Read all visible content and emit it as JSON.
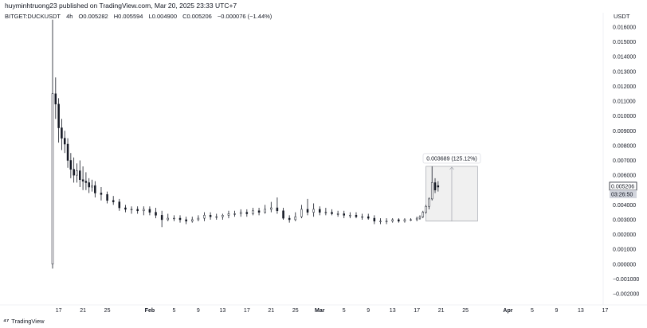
{
  "header": {
    "publish_line": "huyminhtruong23 published on TradingView.com, Mar 20, 2025 23:33 UTC+7"
  },
  "legend": {
    "symbol": "BITGET:DUCKUSDT",
    "interval": "4h",
    "open": "O0.005282",
    "high": "H0.005594",
    "low": "L0.004900",
    "close": "C0.005206",
    "change": "−0.000076 (−1.44%)"
  },
  "axis": {
    "currency": "USDT"
  },
  "footer": {
    "brand": "TradingView"
  },
  "colors": {
    "candle": "#131722",
    "grid": "#ffffff",
    "measure_fill": "#f0f0f0",
    "measure_border": "#9598a1",
    "price_tag_bg": "#ffffff",
    "price_tag_border": "#131722",
    "countdown_bg": "#d1d4dc"
  },
  "chart_data": {
    "type": "candlestick",
    "y_axis": {
      "min": -0.0023,
      "max": 0.0169,
      "ticks": [
        "0.016000",
        "0.015000",
        "0.014000",
        "0.013000",
        "0.012000",
        "0.011000",
        "0.010000",
        "0.009000",
        "0.008000",
        "0.007000",
        "0.006000",
        "0.005000",
        "0.004000",
        "0.003000",
        "0.002000",
        "0.001000",
        "0.000000",
        "−0.001000",
        "−0.002000"
      ],
      "tick_values": [
        0.016,
        0.015,
        0.014,
        0.013,
        0.012,
        0.011,
        0.01,
        0.009,
        0.008,
        0.007,
        0.006,
        0.005,
        0.004,
        0.003,
        0.002,
        0.001,
        0.0,
        -0.001,
        -0.002
      ]
    },
    "x_axis": {
      "start": "2025-01-16",
      "end": "2025-04-18",
      "ticks": [
        {
          "label": "17",
          "date": "2025-01-17",
          "bold": false
        },
        {
          "label": "21",
          "date": "2025-01-21",
          "bold": false
        },
        {
          "label": "25",
          "date": "2025-01-25",
          "bold": false
        },
        {
          "label": "Feb",
          "date": "2025-02-01",
          "bold": true
        },
        {
          "label": "5",
          "date": "2025-02-05",
          "bold": false
        },
        {
          "label": "9",
          "date": "2025-02-09",
          "bold": false
        },
        {
          "label": "13",
          "date": "2025-02-13",
          "bold": false
        },
        {
          "label": "17",
          "date": "2025-02-17",
          "bold": false
        },
        {
          "label": "21",
          "date": "2025-02-21",
          "bold": false
        },
        {
          "label": "25",
          "date": "2025-02-25",
          "bold": false
        },
        {
          "label": "Mar",
          "date": "2025-03-01",
          "bold": true
        },
        {
          "label": "5",
          "date": "2025-03-05",
          "bold": false
        },
        {
          "label": "9",
          "date": "2025-03-09",
          "bold": false
        },
        {
          "label": "13",
          "date": "2025-03-13",
          "bold": false
        },
        {
          "label": "17",
          "date": "2025-03-17",
          "bold": false
        },
        {
          "label": "21",
          "date": "2025-03-21",
          "bold": false
        },
        {
          "label": "25",
          "date": "2025-03-25",
          "bold": false
        },
        {
          "label": "Apr",
          "date": "2025-04-01",
          "bold": true
        },
        {
          "label": "5",
          "date": "2025-04-05",
          "bold": false
        },
        {
          "label": "9",
          "date": "2025-04-09",
          "bold": false
        },
        {
          "label": "13",
          "date": "2025-04-13",
          "bold": false
        },
        {
          "label": "17",
          "date": "2025-04-17",
          "bold": false
        }
      ]
    },
    "series": [
      {
        "date": "2025-01-16",
        "high": 0.0165,
        "low": -0.0003,
        "open": 0.0,
        "close": 0.0115
      },
      {
        "date": "2025-01-16.5",
        "high": 0.0126,
        "low": 0.0098,
        "open": 0.0115,
        "close": 0.0108
      },
      {
        "date": "2025-01-17",
        "high": 0.0112,
        "low": 0.0082,
        "open": 0.0108,
        "close": 0.0092
      },
      {
        "date": "2025-01-17.5",
        "high": 0.0098,
        "low": 0.0077,
        "open": 0.0092,
        "close": 0.0085
      },
      {
        "date": "2025-01-18",
        "high": 0.009,
        "low": 0.0075,
        "open": 0.0085,
        "close": 0.0081
      },
      {
        "date": "2025-01-18.5",
        "high": 0.0085,
        "low": 0.0065,
        "open": 0.0081,
        "close": 0.007
      },
      {
        "date": "2025-01-19",
        "high": 0.0075,
        "low": 0.0058,
        "open": 0.007,
        "close": 0.0064
      },
      {
        "date": "2025-01-19.5",
        "high": 0.0072,
        "low": 0.0055,
        "open": 0.0064,
        "close": 0.006
      },
      {
        "date": "2025-01-20",
        "high": 0.0068,
        "low": 0.0055,
        "open": 0.006,
        "close": 0.0063
      },
      {
        "date": "2025-01-20.5",
        "high": 0.007,
        "low": 0.0052,
        "open": 0.0063,
        "close": 0.0057
      },
      {
        "date": "2025-01-21",
        "high": 0.0066,
        "low": 0.005,
        "open": 0.0057,
        "close": 0.0056
      },
      {
        "date": "2025-01-21.5",
        "high": 0.0062,
        "low": 0.005,
        "open": 0.0056,
        "close": 0.0055
      },
      {
        "date": "2025-01-22",
        "high": 0.0058,
        "low": 0.0048,
        "open": 0.0055,
        "close": 0.0052
      },
      {
        "date": "2025-01-22.5",
        "high": 0.0057,
        "low": 0.0049,
        "open": 0.0052,
        "close": 0.0053
      },
      {
        "date": "2025-01-23",
        "high": 0.0056,
        "low": 0.0045,
        "open": 0.0053,
        "close": 0.0048
      },
      {
        "date": "2025-01-24",
        "high": 0.0052,
        "low": 0.0043,
        "open": 0.0048,
        "close": 0.0047
      },
      {
        "date": "2025-01-25",
        "high": 0.0049,
        "low": 0.0041,
        "open": 0.0047,
        "close": 0.0043
      },
      {
        "date": "2025-01-26",
        "high": 0.0046,
        "low": 0.004,
        "open": 0.0043,
        "close": 0.0042
      },
      {
        "date": "2025-01-27",
        "high": 0.0044,
        "low": 0.0036,
        "open": 0.0042,
        "close": 0.0038
      },
      {
        "date": "2025-01-28",
        "high": 0.004,
        "low": 0.0035,
        "open": 0.0038,
        "close": 0.0037
      },
      {
        "date": "2025-01-29",
        "high": 0.0039,
        "low": 0.0034,
        "open": 0.0037,
        "close": 0.0037
      },
      {
        "date": "2025-01-30",
        "high": 0.0039,
        "low": 0.0034,
        "open": 0.0037,
        "close": 0.0036
      },
      {
        "date": "2025-01-31",
        "high": 0.0039,
        "low": 0.0033,
        "open": 0.0036,
        "close": 0.0037
      },
      {
        "date": "2025-02-01",
        "high": 0.0039,
        "low": 0.0033,
        "open": 0.0037,
        "close": 0.0035
      },
      {
        "date": "2025-02-02",
        "high": 0.0038,
        "low": 0.0031,
        "open": 0.0035,
        "close": 0.0033
      },
      {
        "date": "2025-02-03",
        "high": 0.0036,
        "low": 0.0025,
        "open": 0.0033,
        "close": 0.003
      },
      {
        "date": "2025-02-04",
        "high": 0.0034,
        "low": 0.0029,
        "open": 0.003,
        "close": 0.0031
      },
      {
        "date": "2025-02-05",
        "high": 0.0033,
        "low": 0.0029,
        "open": 0.0031,
        "close": 0.0031
      },
      {
        "date": "2025-02-06",
        "high": 0.0033,
        "low": 0.0028,
        "open": 0.0031,
        "close": 0.003
      },
      {
        "date": "2025-02-07",
        "high": 0.0032,
        "low": 0.0027,
        "open": 0.003,
        "close": 0.0029
      },
      {
        "date": "2025-02-08",
        "high": 0.0032,
        "low": 0.0028,
        "open": 0.0029,
        "close": 0.003
      },
      {
        "date": "2025-02-09",
        "high": 0.0033,
        "low": 0.0029,
        "open": 0.003,
        "close": 0.0031
      },
      {
        "date": "2025-02-10",
        "high": 0.0035,
        "low": 0.0029,
        "open": 0.0031,
        "close": 0.0033
      },
      {
        "date": "2025-02-11",
        "high": 0.0035,
        "low": 0.003,
        "open": 0.0033,
        "close": 0.0032
      },
      {
        "date": "2025-02-12",
        "high": 0.0034,
        "low": 0.003,
        "open": 0.0032,
        "close": 0.0032
      },
      {
        "date": "2025-02-13",
        "high": 0.0034,
        "low": 0.003,
        "open": 0.0032,
        "close": 0.0033
      },
      {
        "date": "2025-02-14",
        "high": 0.0036,
        "low": 0.0031,
        "open": 0.0033,
        "close": 0.0034
      },
      {
        "date": "2025-02-15",
        "high": 0.0036,
        "low": 0.0032,
        "open": 0.0034,
        "close": 0.0034
      },
      {
        "date": "2025-02-16",
        "high": 0.0037,
        "low": 0.0032,
        "open": 0.0034,
        "close": 0.0035
      },
      {
        "date": "2025-02-17",
        "high": 0.0037,
        "low": 0.0032,
        "open": 0.0035,
        "close": 0.0034
      },
      {
        "date": "2025-02-18",
        "high": 0.0038,
        "low": 0.0033,
        "open": 0.0034,
        "close": 0.0036
      },
      {
        "date": "2025-02-19",
        "high": 0.0038,
        "low": 0.0033,
        "open": 0.0036,
        "close": 0.0035
      },
      {
        "date": "2025-02-20",
        "high": 0.004,
        "low": 0.0034,
        "open": 0.0035,
        "close": 0.0037
      },
      {
        "date": "2025-02-21",
        "high": 0.0042,
        "low": 0.0035,
        "open": 0.0037,
        "close": 0.0038
      },
      {
        "date": "2025-02-22",
        "high": 0.0045,
        "low": 0.0034,
        "open": 0.0038,
        "close": 0.0036
      },
      {
        "date": "2025-02-23",
        "high": 0.0038,
        "low": 0.003,
        "open": 0.0036,
        "close": 0.0031
      },
      {
        "date": "2025-02-24",
        "high": 0.0033,
        "low": 0.0028,
        "open": 0.0031,
        "close": 0.003
      },
      {
        "date": "2025-02-25",
        "high": 0.0035,
        "low": 0.0029,
        "open": 0.003,
        "close": 0.0032
      },
      {
        "date": "2025-02-26",
        "high": 0.004,
        "low": 0.0031,
        "open": 0.0032,
        "close": 0.0037
      },
      {
        "date": "2025-02-27",
        "high": 0.0044,
        "low": 0.0033,
        "open": 0.0037,
        "close": 0.0035
      },
      {
        "date": "2025-02-28",
        "high": 0.0041,
        "low": 0.0032,
        "open": 0.0035,
        "close": 0.0037
      },
      {
        "date": "2025-03-01",
        "high": 0.0039,
        "low": 0.0033,
        "open": 0.0037,
        "close": 0.0035
      },
      {
        "date": "2025-03-02",
        "high": 0.0038,
        "low": 0.0033,
        "open": 0.0035,
        "close": 0.0035
      },
      {
        "date": "2025-03-03",
        "high": 0.0037,
        "low": 0.0033,
        "open": 0.0035,
        "close": 0.0034
      },
      {
        "date": "2025-03-04",
        "high": 0.0036,
        "low": 0.0032,
        "open": 0.0034,
        "close": 0.0034
      },
      {
        "date": "2025-03-05",
        "high": 0.0036,
        "low": 0.0031,
        "open": 0.0034,
        "close": 0.0033
      },
      {
        "date": "2025-03-06",
        "high": 0.0035,
        "low": 0.0031,
        "open": 0.0033,
        "close": 0.0033
      },
      {
        "date": "2025-03-07",
        "high": 0.0035,
        "low": 0.0031,
        "open": 0.0033,
        "close": 0.0032
      },
      {
        "date": "2025-03-08",
        "high": 0.0034,
        "low": 0.003,
        "open": 0.0032,
        "close": 0.0032
      },
      {
        "date": "2025-03-09",
        "high": 0.0034,
        "low": 0.003,
        "open": 0.0032,
        "close": 0.0031
      },
      {
        "date": "2025-03-10",
        "high": 0.0033,
        "low": 0.0027,
        "open": 0.0031,
        "close": 0.0029
      },
      {
        "date": "2025-03-11",
        "high": 0.0031,
        "low": 0.0027,
        "open": 0.0029,
        "close": 0.0029
      },
      {
        "date": "2025-03-12",
        "high": 0.0031,
        "low": 0.0027,
        "open": 0.0029,
        "close": 0.0029
      },
      {
        "date": "2025-03-13",
        "high": 0.0031,
        "low": 0.0028,
        "open": 0.0029,
        "close": 0.003
      },
      {
        "date": "2025-03-14",
        "high": 0.0031,
        "low": 0.0028,
        "open": 0.003,
        "close": 0.0029
      },
      {
        "date": "2025-03-15",
        "high": 0.0031,
        "low": 0.0028,
        "open": 0.0029,
        "close": 0.003
      },
      {
        "date": "2025-03-16",
        "high": 0.0031,
        "low": 0.0029,
        "open": 0.003,
        "close": 0.003
      },
      {
        "date": "2025-03-17",
        "high": 0.0032,
        "low": 0.0029,
        "open": 0.003,
        "close": 0.0031
      },
      {
        "date": "2025-03-17.5",
        "high": 0.0033,
        "low": 0.003,
        "open": 0.0031,
        "close": 0.0032
      },
      {
        "date": "2025-03-18",
        "high": 0.0036,
        "low": 0.0031,
        "open": 0.0032,
        "close": 0.0035
      },
      {
        "date": "2025-03-18.5",
        "high": 0.004,
        "low": 0.0034,
        "open": 0.0035,
        "close": 0.0039
      },
      {
        "date": "2025-03-19",
        "high": 0.0045,
        "low": 0.0037,
        "open": 0.0039,
        "close": 0.0044
      },
      {
        "date": "2025-03-19.5",
        "high": 0.0066,
        "low": 0.0043,
        "open": 0.0044,
        "close": 0.0055
      },
      {
        "date": "2025-03-20",
        "high": 0.0058,
        "low": 0.0048,
        "open": 0.0055,
        "close": 0.005
      },
      {
        "date": "2025-03-20.5",
        "high": 0.0056,
        "low": 0.0049,
        "open": 0.0053,
        "close": 0.0052
      }
    ],
    "measure": {
      "label": "0.003689 (125.12%)",
      "from_date": "2025-03-18.5",
      "to_date": "2025-03-27",
      "low": 0.0029,
      "high": 0.0066
    },
    "last_price": {
      "label": "0.005206",
      "countdown": "03:26:50",
      "value": 0.005206
    }
  }
}
